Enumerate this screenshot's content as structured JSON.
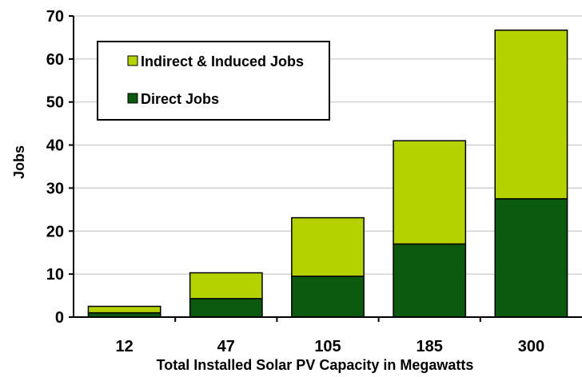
{
  "chart_data": {
    "type": "bar",
    "stacked": true,
    "categories": [
      "12",
      "47",
      "105",
      "185",
      "300"
    ],
    "series": [
      {
        "name": "Direct Jobs",
        "values": [
          1.0,
          4.3,
          9.5,
          17.0,
          27.5
        ],
        "color": "#0b5a10"
      },
      {
        "name": "Indirect & Induced Jobs",
        "values": [
          1.5,
          6.0,
          13.6,
          24.0,
          39.2
        ],
        "color": "#b4d200"
      }
    ],
    "title": "",
    "xlabel": "Total Installed Solar PV Capacity in Megawatts",
    "ylabel": "Jobs",
    "ylim": [
      0,
      70
    ],
    "yticks": [
      "0",
      "10",
      "20",
      "30",
      "40",
      "50",
      "60",
      "70"
    ],
    "grid": true,
    "legend": {
      "placement": "top-left",
      "entries": [
        "Indirect & Induced Jobs",
        "Direct Jobs"
      ]
    }
  }
}
